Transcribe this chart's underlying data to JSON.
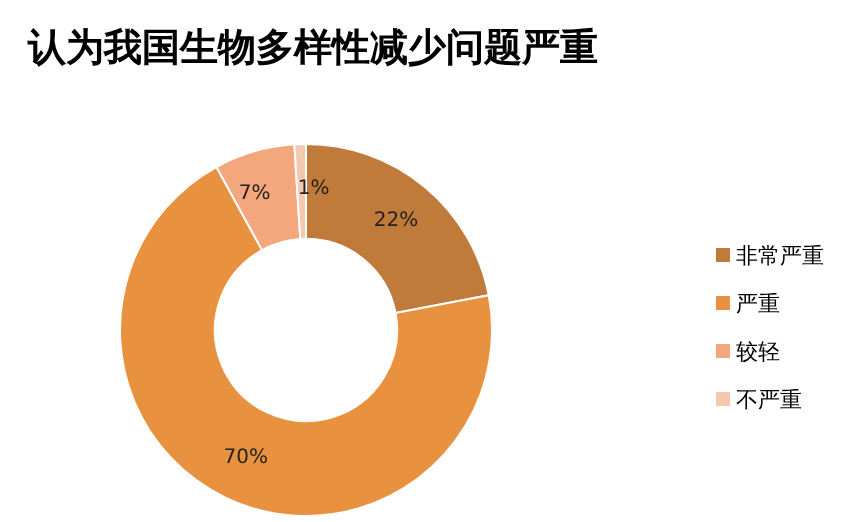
{
  "chart_data": {
    "type": "donut",
    "title": "认为我国生物多样性减少问题严重",
    "categories": [
      "非常严重",
      "严重",
      "较轻",
      "不严重"
    ],
    "values": [
      22,
      70,
      7,
      1
    ],
    "colors": [
      "#c07a3a",
      "#e8913f",
      "#f4a77c",
      "#f5c9b0"
    ],
    "value_labels": [
      "22%",
      "70%",
      "7%",
      "1%"
    ],
    "legend": "right"
  }
}
